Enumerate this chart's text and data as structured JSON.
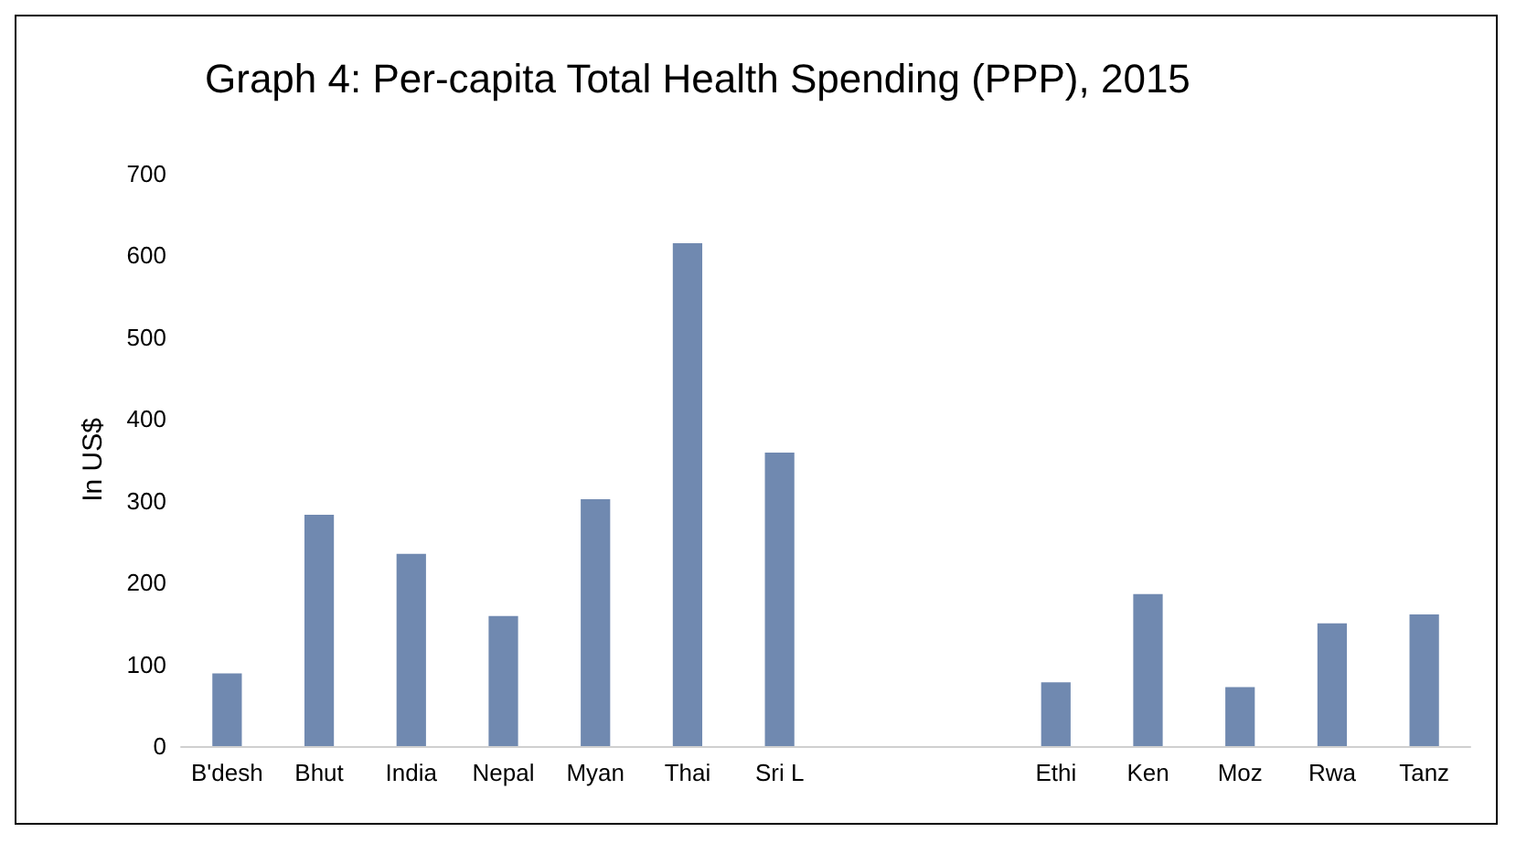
{
  "chart_data": {
    "type": "bar",
    "title": "Graph 4: Per-capita Total Health Spending (PPP), 2015",
    "ylabel": "In US$",
    "categories": [
      "B'desh",
      "Bhut",
      "India",
      "Nepal",
      "Myan",
      "Thai",
      "Sri L",
      null,
      null,
      "Ethi",
      "Ken",
      "Moz",
      "Rwa",
      "Tanz"
    ],
    "values": [
      89,
      283,
      235,
      159,
      302,
      615,
      359,
      null,
      null,
      78,
      186,
      72,
      150,
      161
    ],
    "color": "#7089b0",
    "ylim": [
      0,
      700
    ],
    "yticks": [
      0,
      100,
      200,
      300,
      400,
      500,
      600,
      700
    ]
  }
}
